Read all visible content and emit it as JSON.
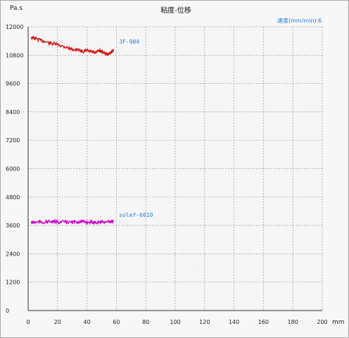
{
  "chart_data": {
    "type": "line",
    "title": "粘度-位移",
    "ylabel": "Pa.s",
    "xlabel": "mm",
    "speed_label": "速度(mm/min):6",
    "xlim": [
      0,
      200
    ],
    "ylim": [
      0,
      12000
    ],
    "x_ticks": [
      "0",
      "20",
      "40",
      "60",
      "80",
      "100",
      "120",
      "140",
      "160",
      "180",
      "200"
    ],
    "y_ticks": [
      "0",
      "1200",
      "2400",
      "3600",
      "4800",
      "6000",
      "7200",
      "8400",
      "9600",
      "10800",
      "12000"
    ],
    "grid": true,
    "series": [
      {
        "name": "3F-904",
        "color": "#d21c1c",
        "x": [
          2,
          5,
          10,
          15,
          20,
          25,
          30,
          35,
          38,
          40,
          42,
          45,
          48,
          50,
          53,
          55,
          57,
          58
        ],
        "y": [
          11550,
          11500,
          11400,
          11300,
          11250,
          11150,
          11050,
          11000,
          10950,
          11000,
          10950,
          10900,
          11000,
          10950,
          10850,
          10850,
          10950,
          11050
        ]
      },
      {
        "name": "solef-6010",
        "color": "#d000d0",
        "x": [
          2,
          5,
          10,
          15,
          20,
          25,
          30,
          35,
          40,
          45,
          50,
          55,
          58
        ],
        "y": [
          3720,
          3740,
          3730,
          3760,
          3740,
          3750,
          3730,
          3760,
          3740,
          3730,
          3750,
          3760,
          3780
        ]
      }
    ]
  }
}
